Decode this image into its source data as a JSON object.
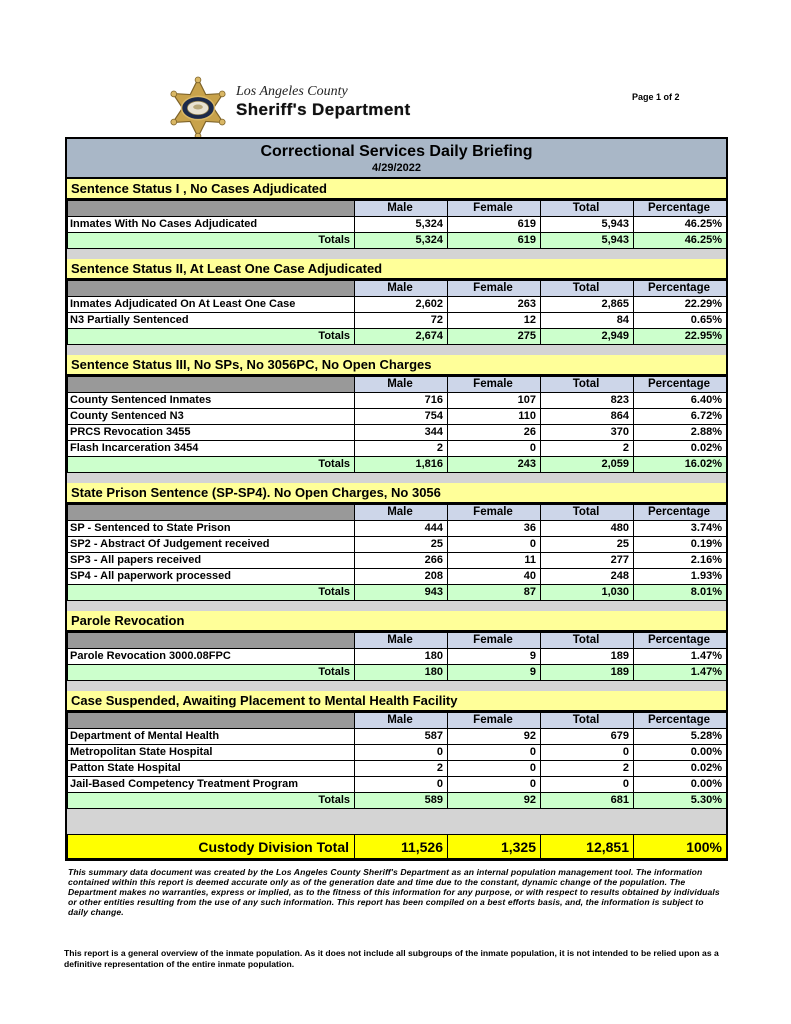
{
  "header": {
    "logo": {
      "icon": "sheriff-star-badge-icon",
      "county": "Los Angeles County",
      "department": "Sheriff's Department"
    },
    "page_label": "Page 1 of 2"
  },
  "report": {
    "title": "Correctional Services Daily Briefing",
    "date": "4/29/2022",
    "columns": [
      "Male",
      "Female",
      "Total",
      "Percentage"
    ],
    "totals_label": "Totals",
    "sections": [
      {
        "title": "Sentence Status I , No Cases Adjudicated",
        "rows": [
          {
            "label": "Inmates With No Cases Adjudicated",
            "values": [
              "5,324",
              "619",
              "5,943",
              "46.25%"
            ]
          }
        ],
        "totals": [
          "5,324",
          "619",
          "5,943",
          "46.25%"
        ]
      },
      {
        "title": "Sentence Status II, At Least One Case Adjudicated",
        "rows": [
          {
            "label": "Inmates Adjudicated On At Least One Case",
            "values": [
              "2,602",
              "263",
              "2,865",
              "22.29%"
            ]
          },
          {
            "label": "N3 Partially Sentenced",
            "values": [
              "72",
              "12",
              "84",
              "0.65%"
            ]
          }
        ],
        "totals": [
          "2,674",
          "275",
          "2,949",
          "22.95%"
        ]
      },
      {
        "title": "Sentence Status III, No SPs, No 3056PC, No Open Charges",
        "rows": [
          {
            "label": "County Sentenced Inmates",
            "values": [
              "716",
              "107",
              "823",
              "6.40%"
            ]
          },
          {
            "label": "County Sentenced N3",
            "values": [
              "754",
              "110",
              "864",
              "6.72%"
            ]
          },
          {
            "label": "PRCS Revocation 3455",
            "values": [
              "344",
              "26",
              "370",
              "2.88%"
            ]
          },
          {
            "label": "Flash Incarceration 3454",
            "values": [
              "2",
              "0",
              "2",
              "0.02%"
            ]
          }
        ],
        "totals": [
          "1,816",
          "243",
          "2,059",
          "16.02%"
        ]
      },
      {
        "title": "State Prison Sentence (SP-SP4). No Open Charges, No 3056",
        "rows": [
          {
            "label": "SP - Sentenced to State Prison",
            "values": [
              "444",
              "36",
              "480",
              "3.74%"
            ]
          },
          {
            "label": "SP2 - Abstract Of Judgement received",
            "values": [
              "25",
              "0",
              "25",
              "0.19%"
            ]
          },
          {
            "label": "SP3 - All papers received",
            "values": [
              "266",
              "11",
              "277",
              "2.16%"
            ]
          },
          {
            "label": "SP4 - All paperwork processed",
            "values": [
              "208",
              "40",
              "248",
              "1.93%"
            ]
          }
        ],
        "totals": [
          "943",
          "87",
          "1,030",
          "8.01%"
        ]
      },
      {
        "title": "Parole Revocation",
        "rows": [
          {
            "label": "Parole Revocation 3000.08FPC",
            "values": [
              "180",
              "9",
              "189",
              "1.47%"
            ]
          }
        ],
        "totals": [
          "180",
          "9",
          "189",
          "1.47%"
        ]
      },
      {
        "title": "Case Suspended, Awaiting Placement to Mental Health Facility",
        "rows": [
          {
            "label": "Department of Mental Health",
            "values": [
              "587",
              "92",
              "679",
              "5.28%"
            ]
          },
          {
            "label": "Metropolitan State Hospital",
            "values": [
              "0",
              "0",
              "0",
              "0.00%"
            ]
          },
          {
            "label": "Patton State Hospital",
            "values": [
              "2",
              "0",
              "2",
              "0.02%"
            ]
          },
          {
            "label": "Jail-Based Competency Treatment Program",
            "values": [
              "0",
              "0",
              "0",
              "0.00%"
            ]
          }
        ],
        "totals": [
          "589",
          "92",
          "681",
          "5.30%"
        ]
      }
    ],
    "grand_total": {
      "label": "Custody Division Total",
      "values": [
        "11,526",
        "1,325",
        "12,851",
        "100%"
      ]
    }
  },
  "footnotes": {
    "disclaimer": "This summary data document was created by the Los Angeles County Sheriff's Department as an internal population management tool.  The information contained within this report is deemed accurate only as of the generation date and time due to the constant, dynamic change of the population.  The Department makes no warranties, express or implied, as to the fitness of this information for any purpose, or with respect to results obtained by individuals or other entities resulting from the use of any such information.  This report has been compiled on a best efforts basis, and, the information is subject to daily change.",
    "overview": "This report is a general overview of the inmate population.  As it does not include all subgroups of the inmate population, it is not intended to be relied upon as a definitive representation of the entire inmate population."
  },
  "colors": {
    "title_bar": "#a9b7c7",
    "section_title": "#ffff99",
    "column_header": "#cdd6e9",
    "header_label_cell": "#999999",
    "totals_row": "#ccffcc",
    "grand_total": "#ffff00",
    "spacer": "#d4d4d4"
  }
}
